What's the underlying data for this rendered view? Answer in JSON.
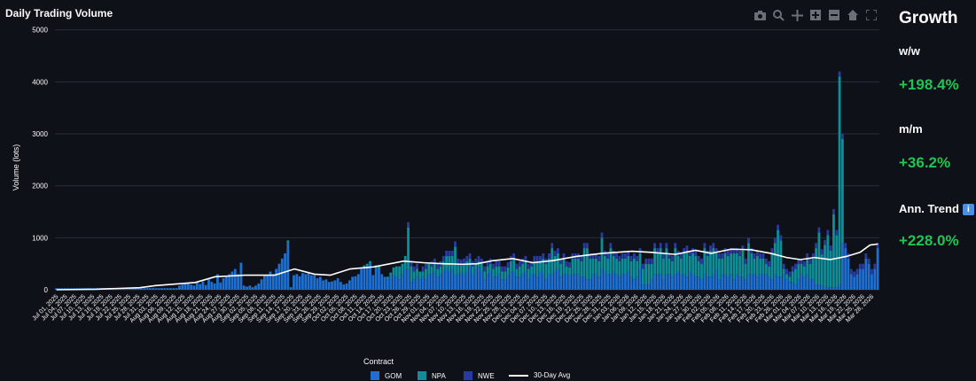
{
  "chart_data": {
    "type": "bar",
    "stacked": true,
    "title": "Daily Trading Volume",
    "ylabel": "Volume (lots)",
    "xlabel": "",
    "ylim": [
      0,
      5200
    ],
    "yticks": [
      0,
      1000,
      2000,
      3000,
      4000,
      5000
    ],
    "grid": true,
    "legend_title": "Contract",
    "legend_placement": "bottom",
    "colors": {
      "GOM": "#1f6fd1",
      "NPA": "#0d8f9a",
      "NWE": "#2b3a9e",
      "avg": "#ffffff"
    },
    "series": [
      {
        "name": "GOM",
        "values": [
          30,
          30,
          30,
          30,
          30,
          30,
          30,
          30,
          30,
          30,
          30,
          30,
          30,
          30,
          30,
          30,
          30,
          30,
          30,
          30,
          30,
          30,
          30,
          30,
          30,
          30,
          30,
          30,
          30,
          30,
          30,
          30,
          30,
          30,
          30,
          30,
          30,
          30,
          30,
          30,
          30,
          30,
          80,
          100,
          120,
          140,
          100,
          80,
          140,
          110,
          160,
          90,
          200,
          150,
          120,
          300,
          140,
          220,
          250,
          300,
          350,
          400,
          300,
          520,
          80,
          60,
          80,
          50,
          80,
          120,
          200,
          280,
          280,
          350,
          300,
          400,
          500,
          600,
          700,
          900,
          50,
          280,
          300,
          260,
          320,
          300,
          330,
          280,
          280,
          220,
          250,
          180,
          200,
          150,
          160,
          180,
          220,
          150,
          100,
          120,
          180,
          250,
          260,
          300,
          400,
          420,
          450,
          500,
          280,
          420,
          400,
          300,
          250,
          200,
          280,
          280,
          250,
          200,
          300,
          400,
          400,
          150,
          200,
          250,
          200,
          250,
          200,
          300,
          300,
          350,
          250,
          300,
          350,
          400,
          350,
          400,
          280,
          300,
          330,
          300,
          350,
          450,
          300,
          400,
          450,
          350,
          200,
          300,
          350,
          250,
          250,
          300,
          200,
          200,
          280,
          350,
          350,
          250,
          250,
          300,
          350,
          200,
          300,
          300,
          250,
          350,
          300,
          200,
          300,
          300,
          350,
          400,
          250,
          300,
          300,
          280,
          300,
          300,
          300,
          250,
          250,
          200,
          200,
          300,
          300,
          250,
          400,
          350,
          300,
          300,
          350,
          300,
          250,
          300,
          300,
          350,
          250,
          200,
          250,
          400,
          100,
          100,
          100,
          200,
          300,
          300,
          300,
          200,
          300,
          300,
          250,
          300,
          350,
          300,
          300,
          250,
          350,
          300,
          250,
          250,
          200,
          300,
          250,
          250,
          300,
          400,
          200,
          300,
          300,
          250,
          300,
          200,
          300,
          250,
          250,
          200,
          300,
          300,
          300,
          250,
          300,
          300,
          300,
          250,
          200,
          300,
          250,
          250,
          300,
          200,
          150,
          150,
          100,
          200,
          300,
          250,
          300,
          200,
          200,
          100,
          100,
          80,
          60,
          50,
          50,
          50,
          50,
          100,
          900,
          800,
          600,
          300,
          250,
          300,
          400,
          400,
          600,
          500,
          300,
          400,
          800
        ]
      },
      {
        "name": "NPA",
        "values": [
          0,
          0,
          0,
          0,
          0,
          0,
          0,
          0,
          0,
          0,
          0,
          0,
          0,
          0,
          0,
          0,
          0,
          0,
          0,
          0,
          0,
          0,
          0,
          0,
          0,
          0,
          0,
          0,
          0,
          0,
          0,
          0,
          0,
          0,
          0,
          0,
          0,
          0,
          0,
          0,
          0,
          0,
          0,
          0,
          0,
          0,
          0,
          0,
          0,
          0,
          0,
          0,
          0,
          0,
          0,
          0,
          0,
          0,
          0,
          0,
          0,
          0,
          0,
          0,
          0,
          0,
          0,
          0,
          0,
          0,
          0,
          0,
          0,
          0,
          0,
          0,
          0,
          0,
          0,
          50,
          0,
          0,
          0,
          0,
          0,
          0,
          0,
          0,
          0,
          0,
          0,
          0,
          0,
          0,
          0,
          0,
          0,
          0,
          0,
          0,
          0,
          0,
          0,
          0,
          0,
          50,
          50,
          50,
          0,
          50,
          50,
          0,
          0,
          50,
          50,
          150,
          200,
          250,
          200,
          250,
          800,
          300,
          150,
          150,
          150,
          100,
          200,
          200,
          150,
          150,
          150,
          150,
          200,
          250,
          300,
          250,
          550,
          200,
          150,
          200,
          200,
          150,
          150,
          100,
          100,
          150,
          150,
          150,
          150,
          150,
          200,
          150,
          150,
          150,
          150,
          200,
          250,
          150,
          200,
          200,
          200,
          200,
          150,
          250,
          300,
          200,
          300,
          300,
          300,
          500,
          300,
          300,
          250,
          300,
          150,
          150,
          300,
          300,
          300,
          300,
          550,
          600,
          400,
          300,
          300,
          300,
          600,
          300,
          300,
          500,
          300,
          300,
          300,
          300,
          300,
          300,
          300,
          400,
          300,
          300,
          300,
          400,
          400,
          300,
          500,
          400,
          500,
          400,
          500,
          300,
          300,
          500,
          300,
          300,
          400,
          500,
          300,
          400,
          400,
          300,
          300,
          500,
          400,
          500,
          500,
          300,
          400,
          300,
          400,
          400,
          400,
          500,
          400,
          400,
          500,
          300,
          600,
          400,
          300,
          400,
          300,
          300,
          200,
          200,
          500,
          600,
          900,
          700,
          100,
          100,
          100,
          200,
          300,
          300,
          200,
          200,
          300,
          300,
          400,
          700,
          1000,
          600,
          800,
          1000,
          700,
          1400,
          1000,
          4000,
          2000
        ]
      },
      {
        "name": "NWE",
        "values": [
          0,
          0,
          0,
          0,
          0,
          0,
          0,
          0,
          0,
          0,
          0,
          0,
          0,
          0,
          0,
          0,
          0,
          0,
          0,
          0,
          0,
          0,
          0,
          0,
          0,
          0,
          0,
          0,
          0,
          0,
          0,
          0,
          0,
          0,
          0,
          0,
          0,
          0,
          0,
          0,
          0,
          0,
          0,
          0,
          0,
          0,
          0,
          0,
          0,
          0,
          0,
          0,
          0,
          0,
          0,
          0,
          0,
          0,
          0,
          0,
          0,
          0,
          0,
          0,
          0,
          0,
          0,
          0,
          0,
          0,
          0,
          0,
          0,
          0,
          0,
          0,
          0,
          0,
          0,
          0,
          0,
          0,
          0,
          0,
          0,
          0,
          0,
          0,
          0,
          0,
          0,
          0,
          0,
          0,
          0,
          0,
          0,
          0,
          0,
          0,
          0,
          0,
          0,
          0,
          0,
          0,
          0,
          0,
          0,
          0,
          0,
          0,
          0,
          0,
          0,
          0,
          0,
          0,
          0,
          0,
          100,
          100,
          100,
          100,
          0,
          100,
          100,
          0,
          100,
          100,
          100,
          100,
          100,
          100,
          100,
          100,
          100,
          100,
          100,
          100,
          100,
          100,
          100,
          100,
          100,
          100,
          100,
          100,
          100,
          100,
          100,
          100,
          100,
          100,
          100,
          100,
          100,
          100,
          100,
          100,
          100,
          100,
          100,
          100,
          100,
          100,
          100,
          100,
          100,
          100,
          100,
          100,
          100,
          100,
          100,
          100,
          100,
          100,
          100,
          100,
          100,
          100,
          100,
          100,
          100,
          100,
          100,
          100,
          100,
          100,
          100,
          100,
          100,
          100,
          100,
          100,
          100,
          100,
          100,
          100,
          100,
          100,
          100,
          100,
          100,
          100,
          100,
          100,
          100,
          100,
          100,
          100,
          100,
          100,
          100,
          100,
          100,
          100,
          100,
          100,
          100,
          100,
          100,
          100,
          100,
          100,
          100,
          100,
          100,
          100,
          100,
          100,
          100,
          100,
          100,
          100,
          100,
          100,
          100,
          100,
          100,
          100,
          100,
          100,
          100,
          100,
          100,
          100,
          100,
          100,
          100,
          100,
          100,
          100,
          100,
          100,
          100,
          100,
          100,
          100,
          100,
          100,
          100,
          100,
          100,
          100,
          100,
          100,
          100,
          100,
          100,
          100,
          100,
          100,
          100,
          100,
          100,
          100,
          100,
          100,
          100,
          100,
          100,
          100,
          100,
          100,
          100,
          100,
          100,
          100,
          100,
          100,
          100,
          100,
          100
        ]
      },
      {
        "name": "30-Day Avg",
        "type": "line",
        "values": []
      }
    ],
    "avg_keypoints": [
      [
        0,
        0
      ],
      [
        20,
        10
      ],
      [
        42,
        40
      ],
      [
        50,
        80
      ],
      [
        60,
        110
      ],
      [
        70,
        140
      ],
      [
        80,
        250
      ],
      [
        95,
        280
      ],
      [
        110,
        280
      ],
      [
        120,
        400
      ],
      [
        130,
        300
      ],
      [
        138,
        280
      ],
      [
        148,
        400
      ],
      [
        160,
        440
      ],
      [
        175,
        550
      ],
      [
        185,
        520
      ],
      [
        195,
        500
      ],
      [
        205,
        490
      ],
      [
        212,
        500
      ],
      [
        220,
        560
      ],
      [
        230,
        600
      ],
      [
        240,
        520
      ],
      [
        250,
        560
      ],
      [
        262,
        640
      ],
      [
        275,
        700
      ],
      [
        290,
        740
      ],
      [
        300,
        720
      ],
      [
        312,
        680
      ],
      [
        322,
        760
      ],
      [
        330,
        700
      ],
      [
        340,
        780
      ],
      [
        350,
        770
      ],
      [
        360,
        700
      ],
      [
        368,
        620
      ],
      [
        375,
        580
      ],
      [
        382,
        620
      ],
      [
        390,
        580
      ],
      [
        398,
        640
      ],
      [
        405,
        720
      ],
      [
        410,
        860
      ],
      [
        414,
        880
      ]
    ],
    "x_tick_labels": [
      "Jul 01, 2025",
      "Jul 04, 2025",
      "Jul 07, 2025",
      "Jul 10, 2025",
      "Jul 13, 2025",
      "Jul 16, 2025",
      "Jul 19, 2025",
      "Jul 22, 2025",
      "Jul 25, 2025",
      "Jul 28, 2025",
      "Jul 31, 2025",
      "Aug 03, 2025",
      "Aug 06, 2025",
      "Aug 09, 2025",
      "Aug 12, 2025",
      "Aug 15, 2025",
      "Aug 18, 2025",
      "Aug 21, 2025",
      "Aug 24, 2025",
      "Aug 27, 2025",
      "Aug 30, 2025",
      "Sep 02, 2025",
      "Sep 05, 2025",
      "Sep 08, 2025",
      "Sep 11, 2025",
      "Sep 14, 2025",
      "Sep 17, 2025",
      "Sep 20, 2025",
      "Sep 23, 2025",
      "Sep 26, 2025",
      "Sep 29, 2025",
      "Oct 02, 2025",
      "Oct 05, 2025",
      "Oct 08, 2025",
      "Oct 11, 2025",
      "Oct 14, 2025",
      "Oct 17, 2025",
      "Oct 20, 2025",
      "Oct 23, 2025",
      "Oct 26, 2025",
      "Oct 29, 2025",
      "Nov 01, 2025",
      "Nov 04, 2025",
      "Nov 07, 2025",
      "Nov 10, 2025",
      "Nov 13, 2025",
      "Nov 16, 2025",
      "Nov 19, 2025",
      "Nov 22, 2025",
      "Nov 25, 2025",
      "Nov 28, 2025",
      "Dec 01, 2025",
      "Dec 04, 2025",
      "Dec 07, 2025",
      "Dec 10, 2025",
      "Dec 13, 2025",
      "Dec 16, 2025",
      "Dec 19, 2025",
      "Dec 22, 2025",
      "Dec 25, 2025",
      "Dec 28, 2025",
      "Dec 31, 2025",
      "Jan 03, 2026",
      "Jan 06, 2026",
      "Jan 09, 2026",
      "Jan 12, 2026",
      "Jan 15, 2026",
      "Jan 18, 2026",
      "Jan 21, 2026",
      "Jan 24, 2026",
      "Jan 27, 2026",
      "Jan 30, 2026",
      "Feb 02, 2026",
      "Feb 05, 2026",
      "Feb 08, 2026",
      "Feb 11, 2026",
      "Feb 14, 2026",
      "Feb 17, 2026",
      "Feb 20, 2026",
      "Feb 23, 2026",
      "Feb 26, 2026",
      "Mar 01, 2026",
      "Mar 04, 2026",
      "Mar 07, 2026",
      "Mar 10, 2026",
      "Mar 13, 2026",
      "Mar 16, 2026",
      "Mar 19, 2026",
      "Mar 22, 2026",
      "Mar 25, 2026",
      "Mar 28, 2026"
    ]
  },
  "legend": {
    "title": "Contract",
    "items": [
      {
        "label": "GOM",
        "color": "#1f6fd1",
        "kind": "bar"
      },
      {
        "label": "NPA",
        "color": "#0d8f9a",
        "kind": "bar"
      },
      {
        "label": "NWE",
        "color": "#2b3a9e",
        "kind": "bar"
      },
      {
        "label": "30-Day Avg",
        "color": "#ffffff",
        "kind": "line"
      }
    ]
  },
  "modebar": {
    "icons": [
      "camera-icon",
      "zoom-icon",
      "pan-icon",
      "zoom-in-icon",
      "zoom-out-icon",
      "home-icon",
      "autoscale-icon"
    ]
  },
  "growth": {
    "title": "Growth",
    "ww_label": "w/w",
    "ww_value": "+198.4%",
    "mm_label": "m/m",
    "mm_value": "+36.2%",
    "trend_label": "Ann. Trend",
    "trend_value": "+228.0%",
    "value_color": "#21c354"
  }
}
